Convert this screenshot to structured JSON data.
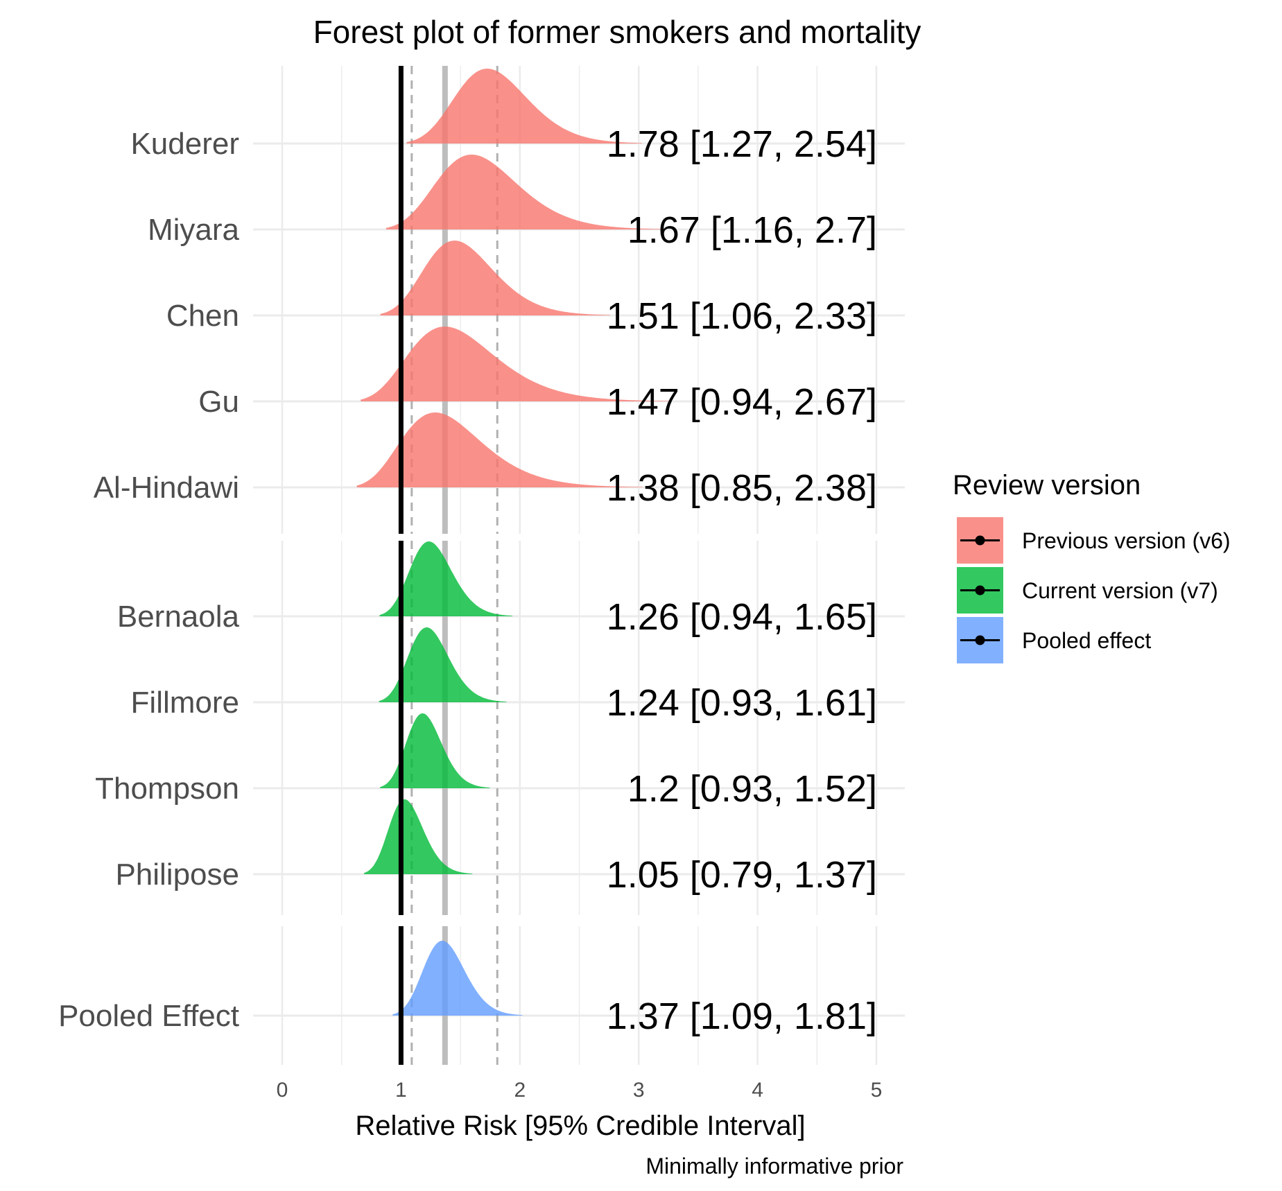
{
  "chart_data": {
    "type": "density-forest",
    "title": "Forest plot of former smokers and mortality",
    "xlabel": "Relative Risk [95% Credible Interval]",
    "caption": "Minimally informative prior",
    "xlim": [
      0,
      5
    ],
    "x_ticks": [
      0,
      1,
      2,
      3,
      4,
      5
    ],
    "grid": true,
    "reference_lines": {
      "null_effect": 1,
      "pooled_estimate": 1.37,
      "pooled_interval": [
        1.09,
        1.81
      ]
    },
    "legend": {
      "title": "Review version",
      "position": "right",
      "items": [
        {
          "label": "Previous version (v6)",
          "color": "#f8766d"
        },
        {
          "label": "Current version (v7)",
          "color": "#00ba38"
        },
        {
          "label": "Pooled effect",
          "color": "#619cff"
        }
      ]
    },
    "studies": [
      {
        "name": "Kuderer",
        "group": "Previous version (v6)",
        "estimate": 1.78,
        "lower": 1.27,
        "upper": 2.54,
        "label": "1.78 [1.27, 2.54]"
      },
      {
        "name": "Miyara",
        "group": "Previous version (v6)",
        "estimate": 1.67,
        "lower": 1.16,
        "upper": 2.7,
        "label": "1.67 [1.16, 2.7]"
      },
      {
        "name": "Chen",
        "group": "Previous version (v6)",
        "estimate": 1.51,
        "lower": 1.06,
        "upper": 2.33,
        "label": "1.51 [1.06, 2.33]"
      },
      {
        "name": "Gu",
        "group": "Previous version (v6)",
        "estimate": 1.47,
        "lower": 0.94,
        "upper": 2.67,
        "label": "1.47 [0.94, 2.67]"
      },
      {
        "name": "Al-Hindawi",
        "group": "Previous version (v6)",
        "estimate": 1.38,
        "lower": 0.85,
        "upper": 2.38,
        "label": "1.38 [0.85, 2.38]"
      },
      {
        "name": "Bernaola",
        "group": "Current version (v7)",
        "estimate": 1.26,
        "lower": 0.94,
        "upper": 1.65,
        "label": "1.26 [0.94, 1.65]"
      },
      {
        "name": "Fillmore",
        "group": "Current version (v7)",
        "estimate": 1.24,
        "lower": 0.93,
        "upper": 1.61,
        "label": "1.24 [0.93, 1.61]"
      },
      {
        "name": "Thompson",
        "group": "Current version (v7)",
        "estimate": 1.2,
        "lower": 0.93,
        "upper": 1.52,
        "label": "1.2 [0.93, 1.52]"
      },
      {
        "name": "Philipose",
        "group": "Current version (v7)",
        "estimate": 1.05,
        "lower": 0.79,
        "upper": 1.37,
        "label": "1.05 [0.79, 1.37]"
      },
      {
        "name": "Pooled Effect",
        "group": "Pooled effect",
        "estimate": 1.37,
        "lower": 1.09,
        "upper": 1.81,
        "label": "1.37 [1.09, 1.81]"
      }
    ]
  }
}
